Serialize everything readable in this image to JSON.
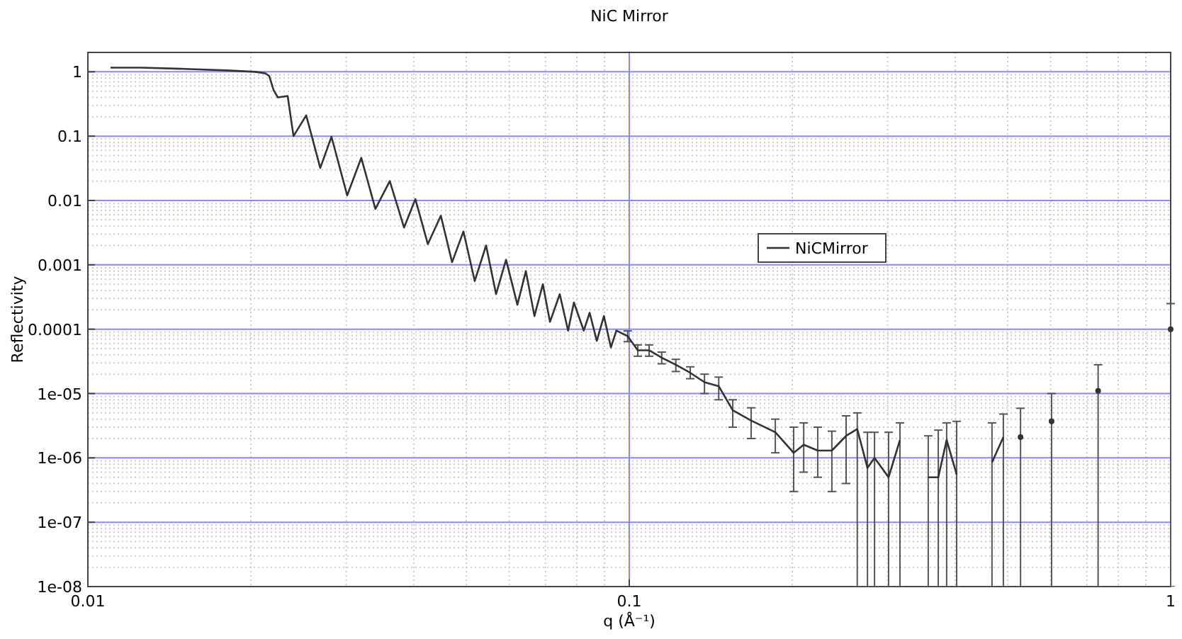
{
  "chart_data": {
    "type": "line",
    "title": "NiC Mirror",
    "xlabel": "q (Å⁻¹)",
    "ylabel": "Reflectivity",
    "log": "xy",
    "grid": true,
    "legend": "right",
    "marker": "none",
    "line_style": "solid",
    "xlim": [
      0.01,
      1
    ],
    "xticks": [
      0.01,
      0.1,
      1
    ],
    "ylim": [
      1e-08,
      2
    ],
    "yticks": [
      1,
      0.1,
      0.01,
      0.001,
      0.0001,
      {
        "value": 1e-05,
        "label": "1e-05"
      },
      {
        "value": 1e-06,
        "label": "1e-06"
      },
      {
        "value": 1e-07,
        "label": "1e-07"
      },
      {
        "value": 1e-08,
        "label": "1e-08"
      }
    ],
    "series": [
      {
        "name": "NiCMirror",
        "color": "#333333",
        "x": [
          0.01101,
          0.01257,
          0.01506,
          0.01805,
          0.02037,
          0.02125,
          0.02163,
          0.02203,
          0.02243,
          0.02339,
          0.02398,
          0.02531,
          0.02687,
          0.02818,
          0.03013,
          0.03199,
          0.03397,
          0.03611,
          0.03837,
          0.04027,
          0.04246,
          0.04487,
          0.04707,
          0.0494,
          0.05183,
          0.05439,
          0.05675,
          0.05921,
          0.06214,
          0.06442,
          0.06681,
          0.06925,
          0.07137,
          0.07441,
          0.07709,
          0.07902,
          0.08241,
          0.08449,
          0.0871,
          0.08978,
          0.0925,
          0.09466,
          0.09931,
          0.1037,
          0.1088,
          0.1148,
          0.1219,
          0.1296,
          0.1377,
          0.1463,
          0.1553,
          0.1679,
          0.1861,
          0.2012,
          0.21,
          0.2229,
          0.2367,
          0.2515,
          0.2637,
          0.2754,
          0.2838,
          0.3013,
          0.3162,
          0.335,
          0.3566,
          0.3722,
          0.3857,
          0.4025,
          0.44,
          0.4677,
          0.4909,
          0.51,
          0.5281,
          0.56,
          0.6026,
          0.67,
          0.7345,
          0.85,
          1.0
        ],
        "values": [
          1.16,
          1.16,
          1.11,
          1.05,
          1.0,
          0.95,
          0.86,
          0.52,
          0.4,
          0.42,
          0.1,
          0.21,
          0.032,
          0.098,
          0.012,
          0.046,
          0.0074,
          0.02,
          0.0038,
          0.0105,
          0.0021,
          0.0058,
          0.0011,
          0.0033,
          0.00056,
          0.002,
          0.00035,
          0.0012,
          0.00024,
          0.0008,
          0.00016,
          0.0005,
          0.00013,
          0.00035,
          9.5e-05,
          0.00026,
          9.5e-05,
          0.00018,
          6.6e-05,
          0.00016,
          5.2e-05,
          9.5e-05,
          7.8e-05,
          4.7e-05,
          4.7e-05,
          3.6e-05,
          2.8e-05,
          2.1e-05,
          1.5e-05,
          1.3e-05,
          5.5e-06,
          3.8e-06,
          2.5e-06,
          1.2e-06,
          1.6e-06,
          1.3e-06,
          1.3e-06,
          2.2e-06,
          2.8e-06,
          7e-07,
          1e-06,
          5e-07,
          1.9e-06,
          null,
          5e-07,
          5e-07,
          1.9e-06,
          5.5e-07,
          null,
          8.5e-07,
          2.1e-06,
          null,
          2.1e-06,
          null,
          3.7e-06,
          null,
          1.1e-05,
          null,
          0.0001
        ],
        "errors": [
          null,
          null,
          null,
          null,
          null,
          null,
          null,
          null,
          null,
          null,
          null,
          null,
          null,
          null,
          null,
          null,
          null,
          null,
          null,
          null,
          null,
          null,
          null,
          null,
          null,
          null,
          null,
          null,
          null,
          null,
          null,
          null,
          null,
          null,
          null,
          null,
          null,
          null,
          null,
          null,
          null,
          null,
          [
            6.4e-05,
            9.4e-05
          ],
          [
            3.8e-05,
            5.7e-05
          ],
          [
            3.8e-05,
            5.7e-05
          ],
          [
            2.9e-05,
            4.4e-05
          ],
          [
            2.2e-05,
            3.4e-05
          ],
          [
            1.7e-05,
            2.6e-05
          ],
          [
            1e-05,
            2e-05
          ],
          [
            8e-06,
            1.8e-05
          ],
          [
            3e-06,
            8e-06
          ],
          [
            2e-06,
            6e-06
          ],
          [
            1.2e-06,
            4e-06
          ],
          [
            3e-07,
            3e-06
          ],
          [
            6e-07,
            3.5e-06
          ],
          [
            5e-07,
            3e-06
          ],
          [
            3e-07,
            2.6e-06
          ],
          [
            4e-07,
            4.5e-06
          ],
          [
            1e-08,
            5e-06
          ],
          [
            1e-08,
            2.5e-06
          ],
          [
            1e-08,
            2.5e-06
          ],
          [
            1e-08,
            2.5e-06
          ],
          [
            1e-08,
            3.5e-06
          ],
          null,
          [
            1e-08,
            2.2e-06
          ],
          [
            1e-08,
            2.7e-06
          ],
          [
            1e-08,
            3.5e-06
          ],
          [
            1e-08,
            3.7e-06
          ],
          null,
          [
            1e-08,
            3.5e-06
          ],
          [
            1e-08,
            4.8e-06
          ],
          null,
          [
            1e-08,
            5.9e-06
          ],
          null,
          [
            1e-08,
            1e-05
          ],
          null,
          [
            1e-08,
            2.8e-05
          ],
          null,
          [
            1e-08,
            0.00025
          ]
        ]
      }
    ]
  }
}
